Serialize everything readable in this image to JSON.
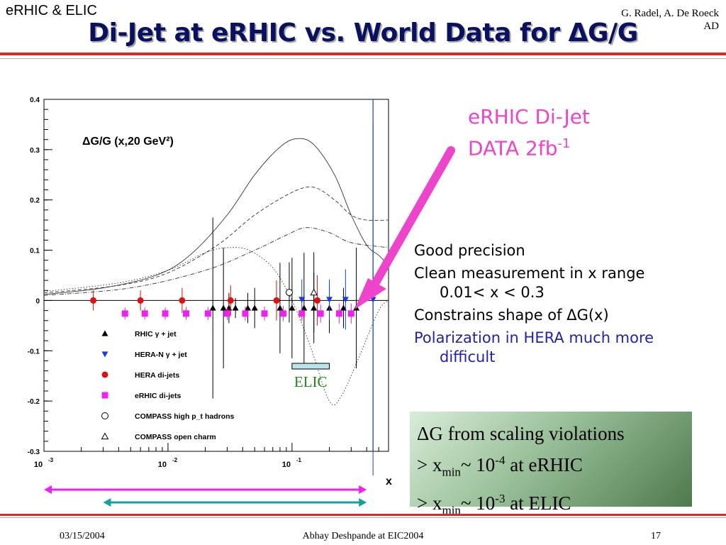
{
  "header": {
    "left": "eRHIC & ELIC",
    "right_line1": "G. Radel, A. De Roeck",
    "right_line2": "AD",
    "title": "Di-Jet at eRHIC vs. World Data for ΔG/G"
  },
  "footer": {
    "date": "03/15/2004",
    "center": "Abhay Deshpande at EIC2004",
    "page": "17"
  },
  "annotation": {
    "line1": "eRHIC Di-Jet",
    "line2_text": "DATA 2fb",
    "line2_sup": "-1",
    "arrow_color": "#ee44cc"
  },
  "bullets": [
    {
      "text": "Good precision",
      "color": "#000000"
    },
    {
      "text": "Clean measurement in x range 0.01< x < 0.3",
      "color": "#000000"
    },
    {
      "text": "Constrains shape of ΔG(x)",
      "color": "#000000"
    },
    {
      "text": "Polarization in HERA much more difficult",
      "color": "#2222aa"
    }
  ],
  "green_box": {
    "line1": "ΔG from scaling violations",
    "line2_prefix": " > x",
    "line2_sub": "min",
    "line2_mid": "~ 10",
    "line2_sup": "-4",
    "line2_suffix": " at eRHIC",
    "line3_prefix": " > x",
    "line3_sub": "min",
    "line3_mid": "~ 10",
    "line3_sup": "-3",
    "line3_suffix": " at ELIC"
  },
  "chart_data": {
    "type": "scatter",
    "title": "ΔG/G (x,20 GeV²)",
    "xlabel": "x",
    "xscale": "log",
    "xlim": [
      0.001,
      0.6
    ],
    "ylim": [
      -0.3,
      0.4
    ],
    "x_ticks": [
      {
        "value": 0.001,
        "label": "10",
        "sup": "-3"
      },
      {
        "value": 0.01,
        "label": "10",
        "sup": "-2"
      },
      {
        "value": 0.1,
        "label": "10",
        "sup": "-1"
      }
    ],
    "y_ticks": [
      0.4,
      0.3,
      0.2,
      0.1,
      0,
      -0.1,
      -0.2,
      -0.3
    ],
    "y_tick_labels": [
      "0.4",
      "0.3",
      "0.2",
      "0.1",
      "0",
      "-0.1",
      "-0.2",
      "-0.3"
    ],
    "elic_label": "ELIC",
    "elic_range": [
      0.1,
      0.2
    ],
    "series": [
      {
        "name": "RHIC γ + jet",
        "marker": "triangle-up-filled",
        "color": "#000000",
        "points": [
          [
            0.08,
            -0.015,
            0.09
          ],
          [
            0.1,
            -0.015,
            0.1
          ],
          [
            0.125,
            -0.015,
            0.11
          ],
          [
            0.15,
            -0.015,
            0.07
          ],
          [
            0.2,
            -0.015,
            0.05
          ],
          [
            0.26,
            -0.015,
            0.04
          ],
          [
            0.33,
            -0.015,
            0.12
          ],
          [
            0.044,
            -0.015,
            0.03
          ],
          [
            0.05,
            -0.015,
            0.04
          ],
          [
            0.031,
            -0.015,
            0.03
          ],
          [
            0.028,
            -0.015,
            0.12
          ],
          [
            0.023,
            -0.015,
            0.18
          ],
          [
            0.035,
            -0.015,
            0.02
          ]
        ]
      },
      {
        "name": "HERA-N γ + jet",
        "marker": "triangle-down-filled",
        "color": "#1a3be0",
        "points": [
          [
            0.12,
            0.002,
            0.04
          ],
          [
            0.2,
            0.002,
            0.04
          ],
          [
            0.27,
            0.002,
            0.06
          ],
          [
            0.45,
            0.002,
            0.35
          ]
        ]
      },
      {
        "name": "HERA di-jets",
        "marker": "circle-filled",
        "color": "#dd1111",
        "points": [
          [
            0.0025,
            0,
            0.02
          ],
          [
            0.006,
            0,
            0.02
          ],
          [
            0.013,
            0,
            0.025
          ],
          [
            0.032,
            0,
            0.03
          ],
          [
            0.075,
            0,
            0.04
          ],
          [
            0.16,
            0,
            0.05
          ]
        ]
      },
      {
        "name": "eRHIC di-jets",
        "marker": "square-filled",
        "color": "#ee22ee",
        "points": [
          [
            0.0045,
            -0.026,
            0.012
          ],
          [
            0.0065,
            -0.026,
            0.012
          ],
          [
            0.0095,
            -0.026,
            0.012
          ],
          [
            0.014,
            -0.026,
            0.013
          ],
          [
            0.021,
            -0.026,
            0.013
          ],
          [
            0.03,
            -0.026,
            0.013
          ],
          [
            0.042,
            -0.026,
            0.014
          ],
          [
            0.06,
            -0.026,
            0.014
          ],
          [
            0.085,
            -0.026,
            0.015
          ],
          [
            0.12,
            -0.026,
            0.016
          ],
          [
            0.17,
            -0.026,
            0.018
          ],
          [
            0.24,
            -0.026,
            0.02
          ],
          [
            0.3,
            -0.026,
            0.02
          ]
        ]
      },
      {
        "name": "COMPASS high p_t hadrons",
        "marker": "circle-open",
        "color": "#000000",
        "points": [
          [
            0.095,
            0.016,
            0.06
          ]
        ]
      },
      {
        "name": "COMPASS open charm",
        "marker": "triangle-up-open",
        "color": "#000000",
        "points": [
          [
            0.15,
            0.016,
            0.08
          ]
        ]
      }
    ],
    "curves": [
      {
        "style": "solid",
        "points": [
          [
            0.001,
            0.012
          ],
          [
            0.003,
            0.025
          ],
          [
            0.008,
            0.05
          ],
          [
            0.015,
            0.09
          ],
          [
            0.03,
            0.17
          ],
          [
            0.05,
            0.25
          ],
          [
            0.08,
            0.305
          ],
          [
            0.11,
            0.322
          ],
          [
            0.15,
            0.31
          ],
          [
            0.22,
            0.25
          ],
          [
            0.3,
            0.17
          ],
          [
            0.4,
            0.11
          ],
          [
            0.5,
            0.09
          ],
          [
            0.6,
            0.07
          ]
        ]
      },
      {
        "style": "dashed",
        "points": [
          [
            0.001,
            0.015
          ],
          [
            0.004,
            0.03
          ],
          [
            0.01,
            0.055
          ],
          [
            0.025,
            0.11
          ],
          [
            0.05,
            0.17
          ],
          [
            0.1,
            0.215
          ],
          [
            0.15,
            0.225
          ],
          [
            0.22,
            0.2
          ],
          [
            0.3,
            0.17
          ],
          [
            0.4,
            0.16
          ],
          [
            0.6,
            0.16
          ]
        ]
      },
      {
        "style": "dotted",
        "points": [
          [
            0.001,
            0.018
          ],
          [
            0.004,
            0.035
          ],
          [
            0.01,
            0.06
          ],
          [
            0.02,
            0.095
          ],
          [
            0.03,
            0.105
          ],
          [
            0.045,
            0.1
          ],
          [
            0.07,
            0.065
          ],
          [
            0.1,
            0.0
          ],
          [
            0.14,
            -0.09
          ],
          [
            0.2,
            -0.2
          ],
          [
            0.25,
            -0.19
          ],
          [
            0.35,
            -0.11
          ],
          [
            0.5,
            -0.02
          ],
          [
            0.6,
            0.0
          ]
        ]
      },
      {
        "style": "dashdot",
        "points": [
          [
            0.001,
            0.01
          ],
          [
            0.005,
            0.025
          ],
          [
            0.02,
            0.06
          ],
          [
            0.05,
            0.1
          ],
          [
            0.09,
            0.13
          ],
          [
            0.13,
            0.145
          ],
          [
            0.2,
            0.135
          ],
          [
            0.3,
            0.115
          ],
          [
            0.6,
            0.105
          ]
        ]
      }
    ],
    "vertical_line": {
      "x": 0.45,
      "color": "#1a3be0"
    },
    "range_bars": [
      {
        "name": "eRHIC range",
        "from": 0.001,
        "to": 0.4,
        "color": "#ee22ee"
      },
      {
        "name": "ELIC range",
        "from": 0.003,
        "to": 0.4,
        "color": "#17a0a0"
      }
    ]
  }
}
